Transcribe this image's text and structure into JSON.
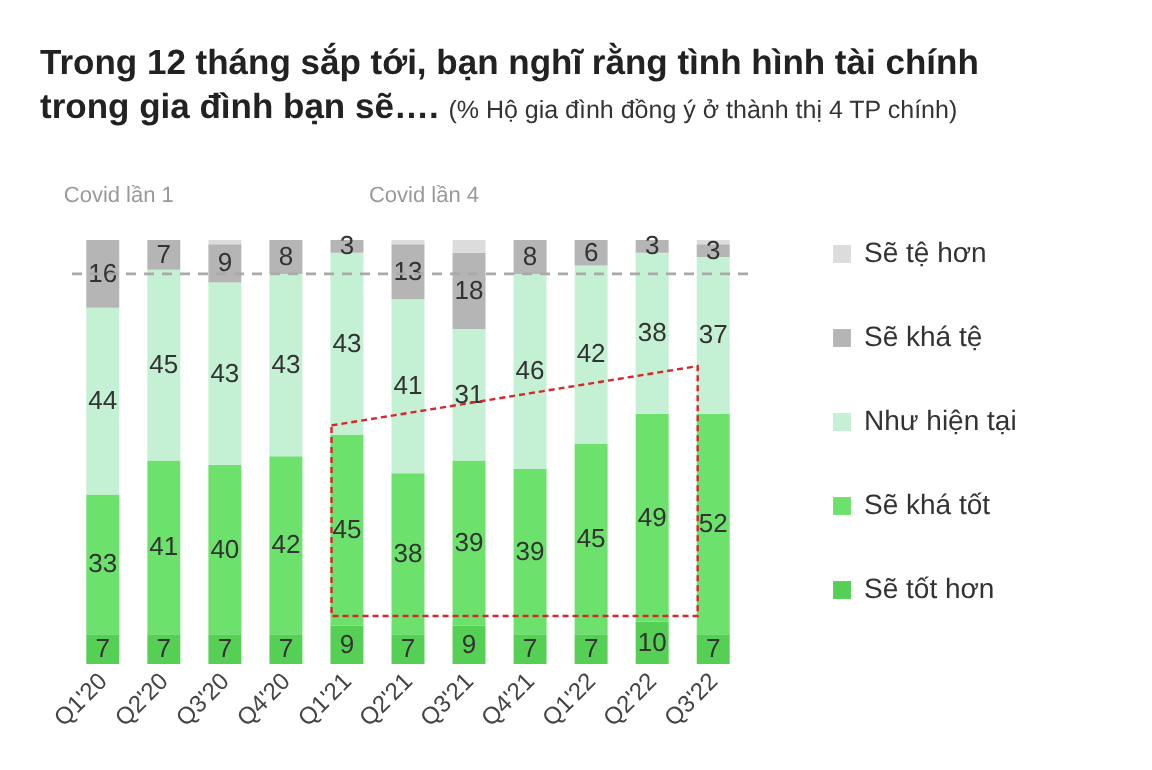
{
  "chart_data": {
    "type": "bar",
    "stacked": true,
    "title": "Trong 12 tháng sắp tới, bạn nghĩ rằng tình hình tài chính trong gia đình bạn sẽ….",
    "subtitle": "(% Hộ gia đình đồng ý ở thành thị 4 TP chính)",
    "categories": [
      "Q1'20",
      "Q2'20",
      "Q3'20",
      "Q4'20",
      "Q1'21",
      "Q2'21",
      "Q3'21",
      "Q4'21",
      "Q1'22",
      "Q2'22",
      "Q3'22"
    ],
    "series": [
      {
        "name": "Sẽ tốt hơn",
        "color": "#55d055",
        "values": [
          7,
          7,
          7,
          7,
          9,
          7,
          9,
          7,
          7,
          10,
          7
        ],
        "value_labels": [
          "7",
          "7",
          "7",
          "7",
          "9",
          "7",
          "9",
          "7",
          "7",
          "10",
          "7"
        ]
      },
      {
        "name": "Sẽ khá tốt",
        "color": "#6ce26c",
        "values": [
          33,
          41,
          40,
          42,
          45,
          38,
          39,
          39,
          45,
          49,
          52
        ],
        "value_labels": [
          "33",
          "41",
          "40",
          "42",
          "45",
          "38",
          "39",
          "39",
          "45",
          "49",
          "52"
        ]
      },
      {
        "name": "Như hiện tại",
        "color": "#c4f0d3",
        "values": [
          44,
          45,
          43,
          43,
          43,
          41,
          31,
          46,
          42,
          38,
          37
        ],
        "value_labels": [
          "44",
          "45",
          "43",
          "43",
          "43",
          "41",
          "31",
          "46",
          "42",
          "38",
          "37"
        ]
      },
      {
        "name": "Sẽ khá tệ",
        "color": "#b5b5b5",
        "values": [
          16,
          7,
          9,
          8,
          3,
          13,
          18,
          8,
          6,
          3,
          3
        ],
        "value_labels": [
          "16",
          "7",
          "9",
          "8",
          "3",
          "13",
          "18",
          "8",
          "6",
          "3",
          "3"
        ]
      },
      {
        "name": "Sẽ tệ hơn",
        "color": "#dcdcdc",
        "values": [
          0,
          0,
          1,
          0,
          0,
          1,
          3,
          0,
          0,
          0,
          1
        ],
        "value_labels": [
          null,
          null,
          null,
          null,
          null,
          null,
          null,
          null,
          null,
          null,
          null
        ]
      }
    ],
    "annotations": [
      "Covid lần 1",
      "Covid lần 4"
    ],
    "ref_lines": [
      {
        "axis": "y",
        "value": 92,
        "label": null,
        "color": "#aaaaaa",
        "line_style": "dashed"
      }
    ],
    "legend": "right",
    "tick_labels": "x",
    "grid": false
  }
}
